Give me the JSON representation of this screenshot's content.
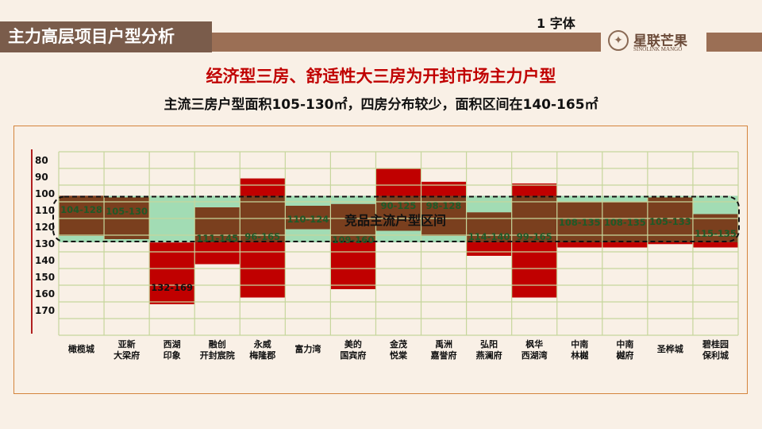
{
  "header": {
    "title": "主力高层项目户型分析",
    "note": "1 字体",
    "logo_cn": "星联芒果",
    "logo_en": "SINOLINK MANGO"
  },
  "headline": "经济型三房、舒适性大三房为开封市场主力户型",
  "subheadline": "主流三房户型面积105-130㎡，四房分布较少，面积区间在140-165㎡",
  "colors": {
    "range": "#c00000",
    "overlap": "#7a3f1e",
    "band": "#a2dcb4",
    "grid": "#c6d69c",
    "accent": "#9b6f55"
  },
  "chart_data": {
    "type": "range-bar",
    "y_ticks": [
      "80",
      "90",
      "100",
      "110",
      "120",
      "130",
      "140",
      "150",
      "160",
      "170"
    ],
    "ylim": [
      80,
      180
    ],
    "band": {
      "label": "竞品主流户型区间",
      "range": [
        105,
        130
      ]
    },
    "categories": [
      {
        "name": [
          "橄榄城"
        ],
        "label": "104-128",
        "range": [
          104,
          128
        ]
      },
      {
        "name": [
          "亚新",
          "大梁府"
        ],
        "label": "105-130",
        "range": [
          105,
          130
        ]
      },
      {
        "name": [
          "西湖",
          "印象"
        ],
        "label": "132-169",
        "range": [
          132,
          169
        ]
      },
      {
        "name": [
          "融创",
          "开封宸院"
        ],
        "label": "111-145",
        "range": [
          111,
          145
        ]
      },
      {
        "name": [
          "永威",
          "梅隆郡"
        ],
        "label": "96-165",
        "range": [
          96,
          165
        ]
      },
      {
        "name": [
          "富力湾"
        ],
        "label": "110-124",
        "range": [
          110,
          124
        ]
      },
      {
        "name": [
          "美的",
          "国宾府"
        ],
        "label": "109-160",
        "range": [
          109,
          160
        ]
      },
      {
        "name": [
          "金茂",
          "悦棠"
        ],
        "label": "90-125",
        "range": [
          90,
          125
        ]
      },
      {
        "name": [
          "禹洲",
          "嘉誉府"
        ],
        "label": "98-128",
        "range": [
          98,
          128
        ]
      },
      {
        "name": [
          "弘阳",
          "燕澜府"
        ],
        "label": "114-140",
        "range": [
          114,
          140
        ]
      },
      {
        "name": [
          "枫华",
          "西湖湾"
        ],
        "label": "99-165",
        "range": [
          99,
          165
        ]
      },
      {
        "name": [
          "中南",
          "林樾"
        ],
        "label": "108-135",
        "range": [
          108,
          135
        ]
      },
      {
        "name": [
          "中南",
          "樾府"
        ],
        "label": "108-135",
        "range": [
          108,
          135
        ]
      },
      {
        "name": [
          "圣桦城"
        ],
        "label": "105-133",
        "range": [
          105,
          133
        ]
      },
      {
        "name": [
          "碧桂园",
          "保利城"
        ],
        "label": "115-135",
        "range": [
          115,
          135
        ]
      }
    ]
  }
}
